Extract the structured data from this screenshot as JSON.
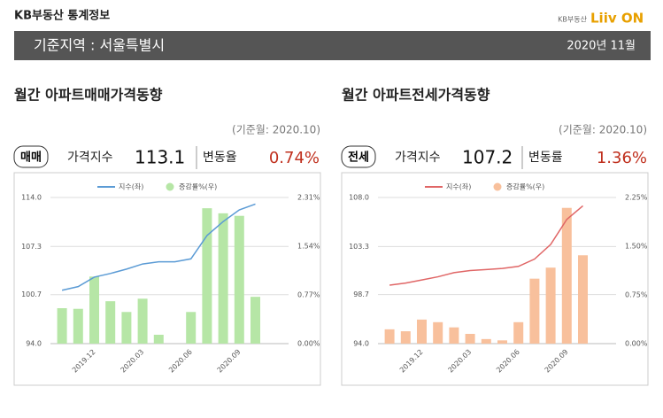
{
  "header": {
    "site": "KB부동산 통계정보",
    "logo_kb": "KB부동산",
    "logo_brand": "Liiv ON",
    "region": "기준지역 : 서울특별시",
    "date": "2020년 11월"
  },
  "panels": [
    {
      "title": "월간 아파트매매가격동향",
      "base_month": "(기준월: 2020.10)",
      "tag": "매매",
      "index_label": "가격지수",
      "index_value": "113.1",
      "change_label": "변동율",
      "change_value": "0.74%"
    },
    {
      "title": "월간 아파트전세가격동향",
      "base_month": "(기준월: 2020.10)",
      "tag": "전세",
      "index_label": "가격지수",
      "index_value": "107.2",
      "change_label": "변동률",
      "change_value": "1.36%"
    }
  ],
  "chart_data": [
    {
      "type": "combo",
      "categories": [
        null,
        null,
        "2019.12",
        null,
        null,
        "2020.03",
        null,
        null,
        "2020.06",
        null,
        null,
        "2020.09",
        null
      ],
      "ylim": [
        94,
        114
      ],
      "yticks": [
        {
          "value": 94,
          "label": "94.0"
        },
        100.7,
        107.3,
        {
          "value": 114,
          "label": "114.0"
        }
      ],
      "y2lim": [
        0,
        2.31
      ],
      "y2ticks": [
        {
          "value": 0,
          "label": "0.00%"
        },
        {
          "value": 0.77,
          "label": "0.77%"
        },
        {
          "value": 1.54,
          "label": "1.54%"
        },
        {
          "value": 2.31,
          "label": "2.31%"
        }
      ],
      "grid": true,
      "legend": "top",
      "series": [
        {
          "name": "지수(좌)",
          "type": "line",
          "color": "#5b9bd5",
          "axis": "y",
          "values": [
            101.3,
            101.8,
            103.1,
            103.6,
            104.2,
            104.9,
            105.2,
            105.2,
            105.6,
            108.8,
            110.7,
            112.3,
            113.1
          ]
        },
        {
          "name": "증감률%(우)",
          "type": "bar",
          "color": "#b6e6a6",
          "axis": "y2",
          "values": [
            0.56,
            0.55,
            1.06,
            0.67,
            0.5,
            0.71,
            0.14,
            0,
            0.5,
            2.14,
            2.06,
            2.02,
            0.74
          ]
        }
      ]
    },
    {
      "type": "combo",
      "categories": [
        null,
        null,
        "2019.12",
        null,
        null,
        "2020.03",
        null,
        null,
        "2020.06",
        null,
        null,
        "2020.09",
        null
      ],
      "ylim": [
        94,
        108
      ],
      "yticks": [
        {
          "value": 94,
          "label": "94.0"
        },
        98.7,
        103.3,
        {
          "value": 108,
          "label": "108.0"
        }
      ],
      "y2lim": [
        0,
        2.25
      ],
      "y2ticks": [
        {
          "value": 0,
          "label": "0.00%"
        },
        {
          "value": 0.75,
          "label": "0.75%"
        },
        {
          "value": 1.5,
          "label": "1.50%"
        },
        {
          "value": 2.25,
          "label": "2.25%"
        }
      ],
      "grid": true,
      "legend": "top",
      "series": [
        {
          "name": "지수(좌)",
          "type": "line",
          "color": "#e06666",
          "axis": "y",
          "values": [
            99.6,
            99.8,
            100.1,
            100.4,
            100.8,
            101,
            101.1,
            101.2,
            101.4,
            102.1,
            103.5,
            105.9,
            107.2
          ]
        },
        {
          "name": "증감률%(우)",
          "type": "bar",
          "color": "#f8c09c",
          "axis": "y2",
          "values": [
            0.22,
            0.19,
            0.37,
            0.33,
            0.25,
            0.15,
            0.07,
            0.05,
            0.33,
            1,
            1.17,
            2.09,
            1.36
          ]
        }
      ]
    }
  ]
}
